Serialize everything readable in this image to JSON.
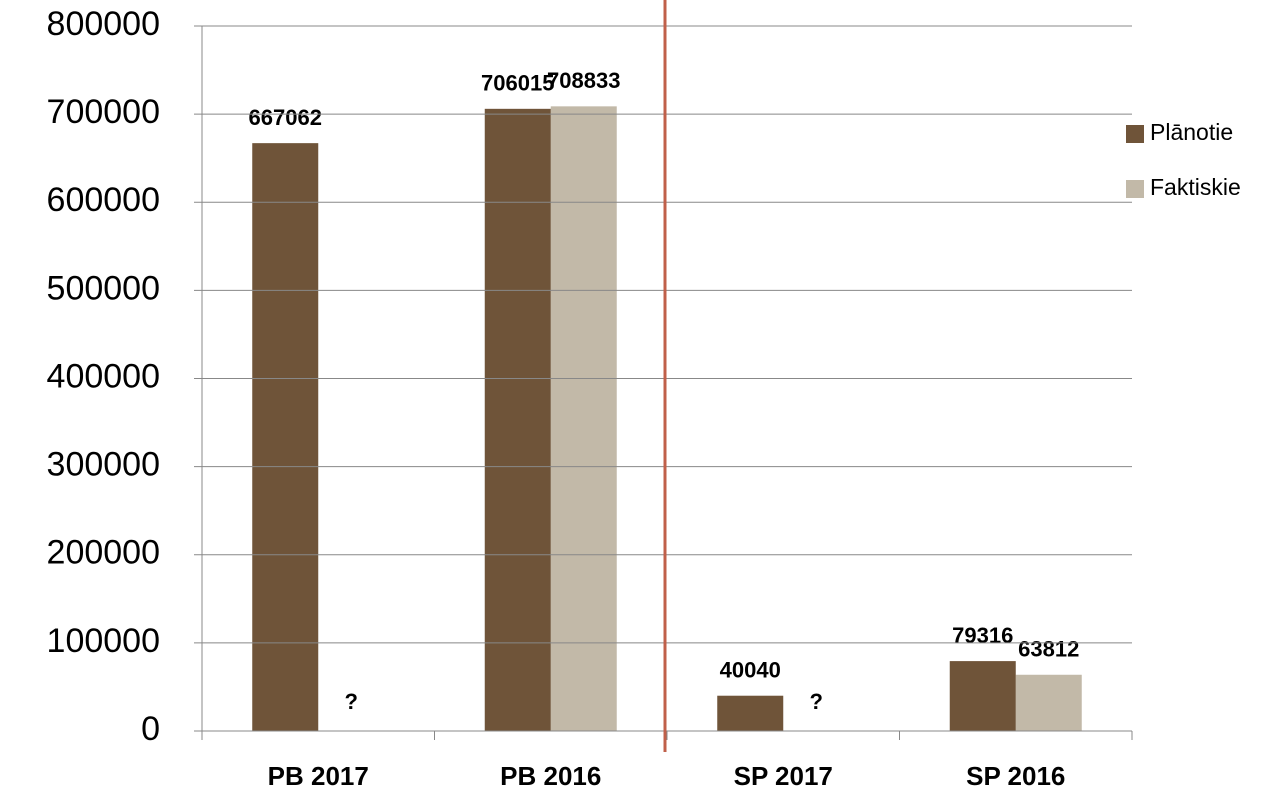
{
  "chart_data": {
    "type": "bar",
    "categories": [
      "PB 2017",
      "PB 2016",
      "SP 2017",
      "SP 2016"
    ],
    "series": [
      {
        "name": "Plānotie",
        "color": "#6f5439",
        "values": [
          667062,
          706015,
          40040,
          79316
        ]
      },
      {
        "name": "Faktiskie",
        "color": "#c2b9a8",
        "values": [
          null,
          708833,
          null,
          63812
        ],
        "value_labels": [
          "?",
          null,
          "?",
          null
        ]
      }
    ],
    "ylim": [
      0,
      800000
    ],
    "yticks": [
      0,
      100000,
      200000,
      300000,
      400000,
      500000,
      600000,
      700000,
      800000
    ],
    "grid": true,
    "legend": "right"
  }
}
